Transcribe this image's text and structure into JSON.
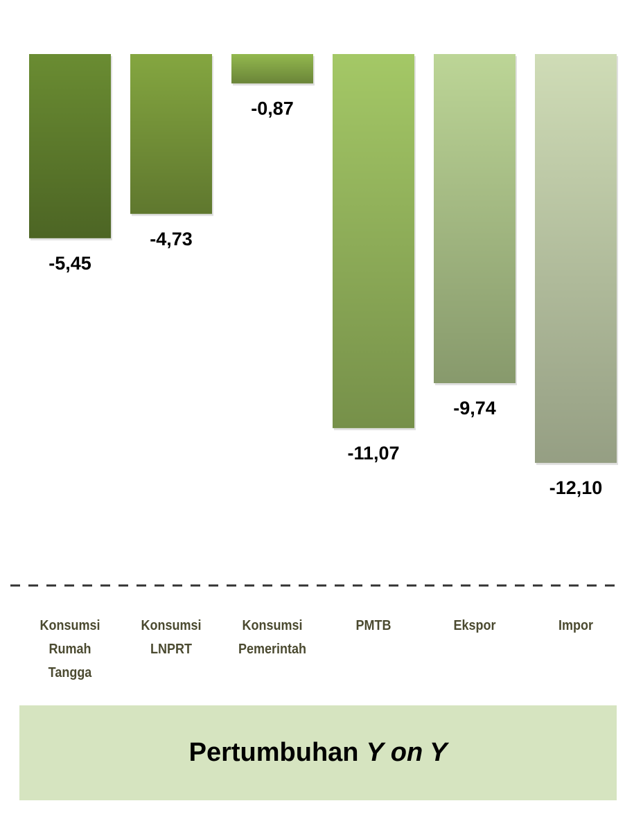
{
  "chart_data": {
    "type": "bar",
    "categories": [
      "Konsumsi Rumah Tangga",
      "Konsumsi LNPRT",
      "Konsumsi Pemerintah",
      "PMTB",
      "Ekspor",
      "Impor"
    ],
    "values": [
      -5.45,
      -4.73,
      -0.87,
      -11.07,
      -9.74,
      -12.1
    ],
    "value_labels": [
      "-5,45",
      "-4,73",
      "-0,87",
      "-11,07",
      "-9,74",
      "-12,10"
    ],
    "colors": [
      "#6a8c32",
      "#84a640",
      "#93b84e",
      "#a4c866",
      "#bcd596",
      "#cfdcb6"
    ],
    "ylim": [
      -13,
      0
    ],
    "title_parts": [
      "Pertumbuhan",
      "Y on Y"
    ]
  }
}
